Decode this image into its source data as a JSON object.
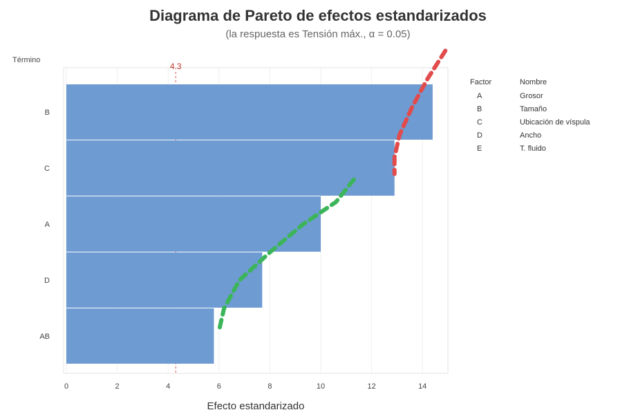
{
  "chart_data": {
    "type": "bar",
    "orientation": "horizontal",
    "title": "Diagrama de Pareto de efectos estandarizados",
    "subtitle": "(la respuesta es Tensión máx., α = 0.05)",
    "xlabel": "Efecto estandarizado",
    "ylabel": "Término",
    "reference_value": 4.3,
    "reference_label": "4.3",
    "xlim": [
      0,
      15
    ],
    "xticks": [
      "0",
      "2",
      "4",
      "6",
      "8",
      "10",
      "12",
      "14"
    ],
    "categories": [
      "B",
      "C",
      "A",
      "D",
      "AB"
    ],
    "values": [
      14.4,
      12.9,
      10.0,
      7.7,
      5.8
    ],
    "bar_color": "#6e9bd2",
    "curves": [
      {
        "color": "#e24b4b",
        "points": [
          [
            14.9,
            5.6
          ],
          [
            14.2,
            5.1
          ],
          [
            13.6,
            4.6
          ],
          [
            13.1,
            4.1
          ],
          [
            12.9,
            3.7
          ],
          [
            12.9,
            3.4
          ]
        ]
      },
      {
        "color": "#3cb55a",
        "points": [
          [
            11.3,
            3.3
          ],
          [
            10.6,
            2.9
          ],
          [
            9.3,
            2.5
          ],
          [
            8.0,
            2.0
          ],
          [
            6.8,
            1.5
          ],
          [
            6.2,
            1.0
          ],
          [
            6.0,
            0.6
          ]
        ]
      }
    ],
    "legend": {
      "position": "right",
      "headers": [
        "Factor",
        "Nombre"
      ],
      "items": [
        {
          "factor": "A",
          "name": "Grosor"
        },
        {
          "factor": "B",
          "name": "Tamaño"
        },
        {
          "factor": "C",
          "name": "Ubicación de víspula"
        },
        {
          "factor": "D",
          "name": "Ancho"
        },
        {
          "factor": "E",
          "name": "T. fluido"
        }
      ]
    }
  }
}
